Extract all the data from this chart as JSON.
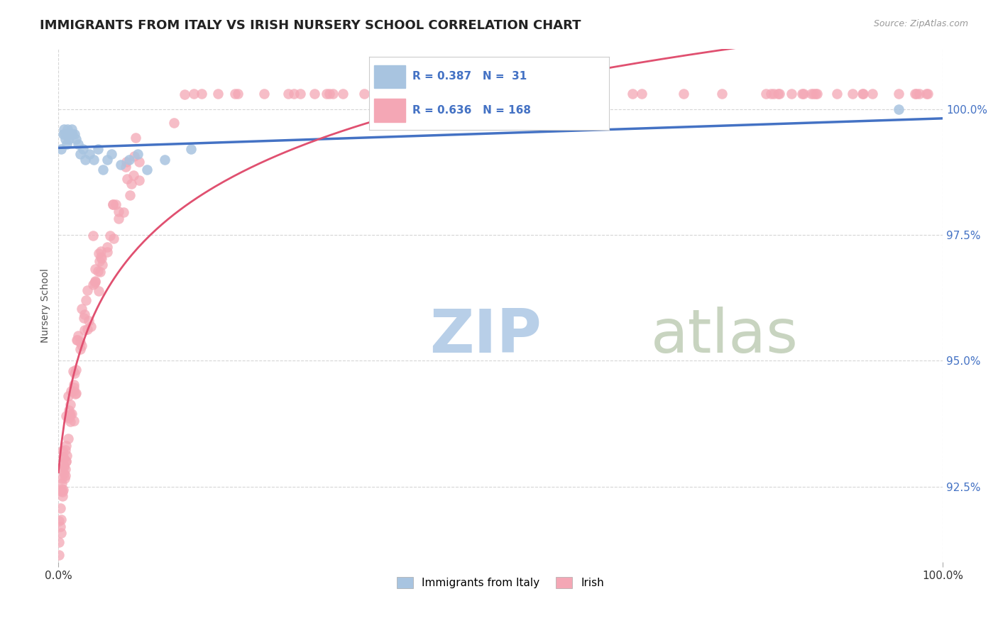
{
  "title": "IMMIGRANTS FROM ITALY VS IRISH NURSERY SCHOOL CORRELATION CHART",
  "source_text": "Source: ZipAtlas.com",
  "ylabel": "Nursery School",
  "legend_label_1": "Immigrants from Italy",
  "legend_label_2": "Irish",
  "r1": 0.387,
  "n1": 31,
  "r2": 0.636,
  "n2": 168,
  "xlim": [
    0.0,
    100.0
  ],
  "ylim": [
    91.0,
    101.2
  ],
  "yticks": [
    92.5,
    95.0,
    97.5,
    100.0
  ],
  "ytick_labels": [
    "92.5%",
    "95.0%",
    "97.5%",
    "100.0%"
  ],
  "xtick_labels": [
    "0.0%",
    "100.0%"
  ],
  "color_italy": "#a8c4e0",
  "color_irish": "#f4a7b5",
  "line_color_italy": "#4472c4",
  "line_color_irish": "#e05070",
  "background_color": "#ffffff",
  "watermark_zip": "ZIP",
  "watermark_atlas": "atlas",
  "watermark_color_zip": "#b8cfe8",
  "watermark_color_atlas": "#c8d4c0",
  "title_fontsize": 13
}
